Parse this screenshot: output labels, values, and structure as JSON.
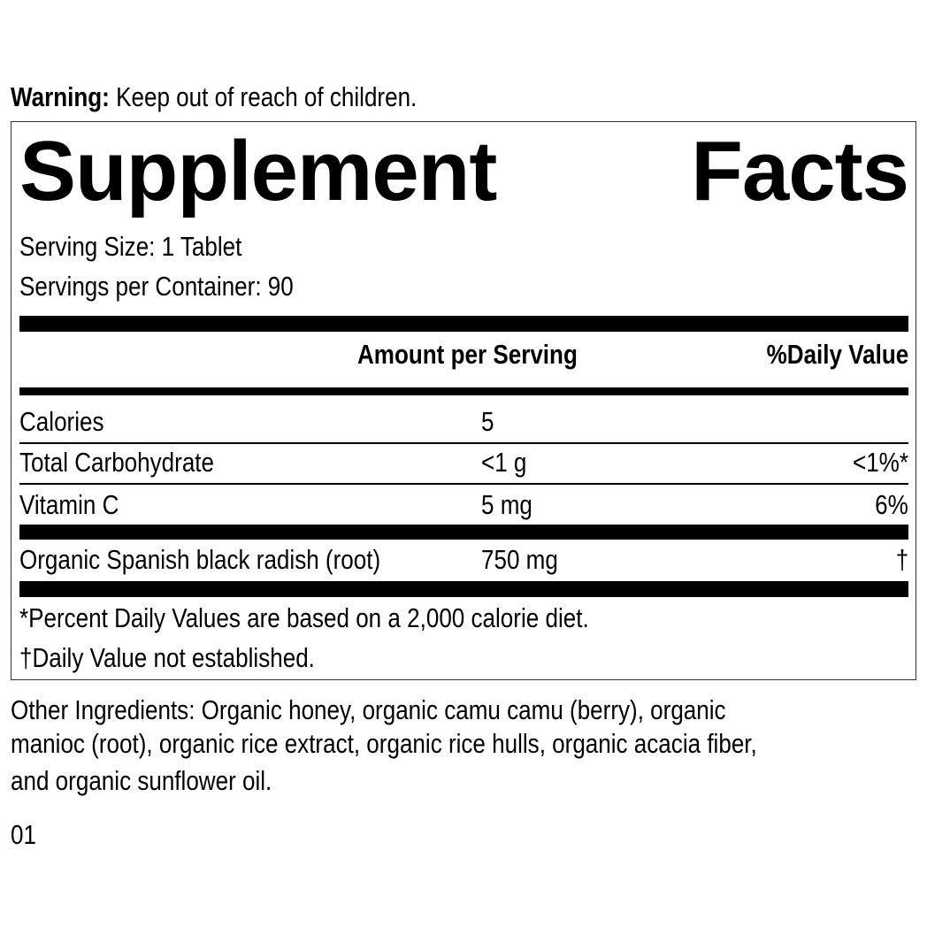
{
  "warning": {
    "label": "Warning:",
    "text": "Keep out of reach of children."
  },
  "title": {
    "word1": "Supplement",
    "word2": "Facts"
  },
  "serving_size": "Serving Size: 1 Tablet",
  "servings_per_container": "Servings per Container: 90",
  "header": {
    "amount": "Amount per Serving",
    "dv": "%Daily Value"
  },
  "rows": [
    {
      "name": "Calories",
      "amount": "5",
      "dv": ""
    },
    {
      "name": "Total Carbohydrate",
      "amount": "<1 g",
      "dv": "<1%*"
    },
    {
      "name": "Vitamin C",
      "amount": "5 mg",
      "dv": "6%"
    },
    {
      "name": "Organic Spanish black radish (root)",
      "amount": "750 mg",
      "dv": "†"
    }
  ],
  "footnotes": [
    "*Percent Daily Values are based on a 2,000 calorie diet.",
    "†Daily Value not established."
  ],
  "other_ingredients": [
    "Other Ingredients: Organic honey, organic camu camu (berry), organic",
    "manioc (root), organic rice extract, organic rice hulls, organic acacia fiber,",
    "and organic sunflower oil."
  ],
  "code": "01"
}
